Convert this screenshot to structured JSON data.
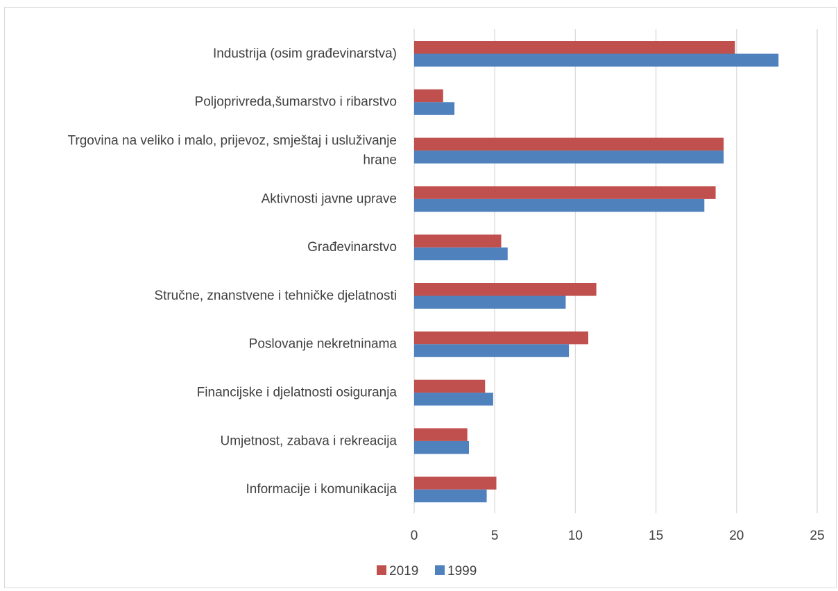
{
  "chart_data": {
    "type": "bar",
    "orientation": "horizontal",
    "title": "",
    "xlabel": "",
    "ylabel": "",
    "categories": [
      "Industrija (osim građevinarstva)",
      "Poljoprivreda,šumarstvo i ribarstvo",
      "Trgovina na veliko i malo, prijevoz, smještaj i usluživanje hrane",
      "Aktivnosti javne uprave",
      "Građevinarstvo",
      "Stručne, znanstvene i tehničke djelatnosti",
      "Poslovanje nekretninama",
      "Financijske i djelatnosti osiguranja",
      "Umjetnost, zabava i rekreacija",
      "Informacije i komunikacija"
    ],
    "category_lines": [
      [
        "Industrija (osim građevinarstva)"
      ],
      [
        "Poljoprivreda,šumarstvo i ribarstvo"
      ],
      [
        "Trgovina na veliko i malo, prijevoz, smještaj i usluživanje",
        "hrane"
      ],
      [
        "Aktivnosti javne uprave"
      ],
      [
        "Građevinarstvo"
      ],
      [
        "Stručne, znanstvene i tehničke djelatnosti"
      ],
      [
        "Poslovanje nekretninama"
      ],
      [
        "Financijske i djelatnosti osiguranja"
      ],
      [
        "Umjetnost, zabava i rekreacija"
      ],
      [
        "Informacije i komunikacija"
      ]
    ],
    "series": [
      {
        "name": "2019",
        "color": "#c0504d",
        "values": [
          19.9,
          1.8,
          19.2,
          18.7,
          5.4,
          11.3,
          10.8,
          4.4,
          3.3,
          5.1
        ]
      },
      {
        "name": "1999",
        "color": "#4f81bd",
        "values": [
          22.6,
          2.5,
          19.2,
          18.0,
          5.8,
          9.4,
          9.6,
          4.9,
          3.4,
          4.5
        ]
      }
    ],
    "xlim": [
      0,
      25
    ],
    "xticks": [
      "0",
      "5",
      "10",
      "15",
      "20",
      "25"
    ],
    "grid": true,
    "gridline_color": "#d9d9d9",
    "legend": "bottom-center"
  }
}
